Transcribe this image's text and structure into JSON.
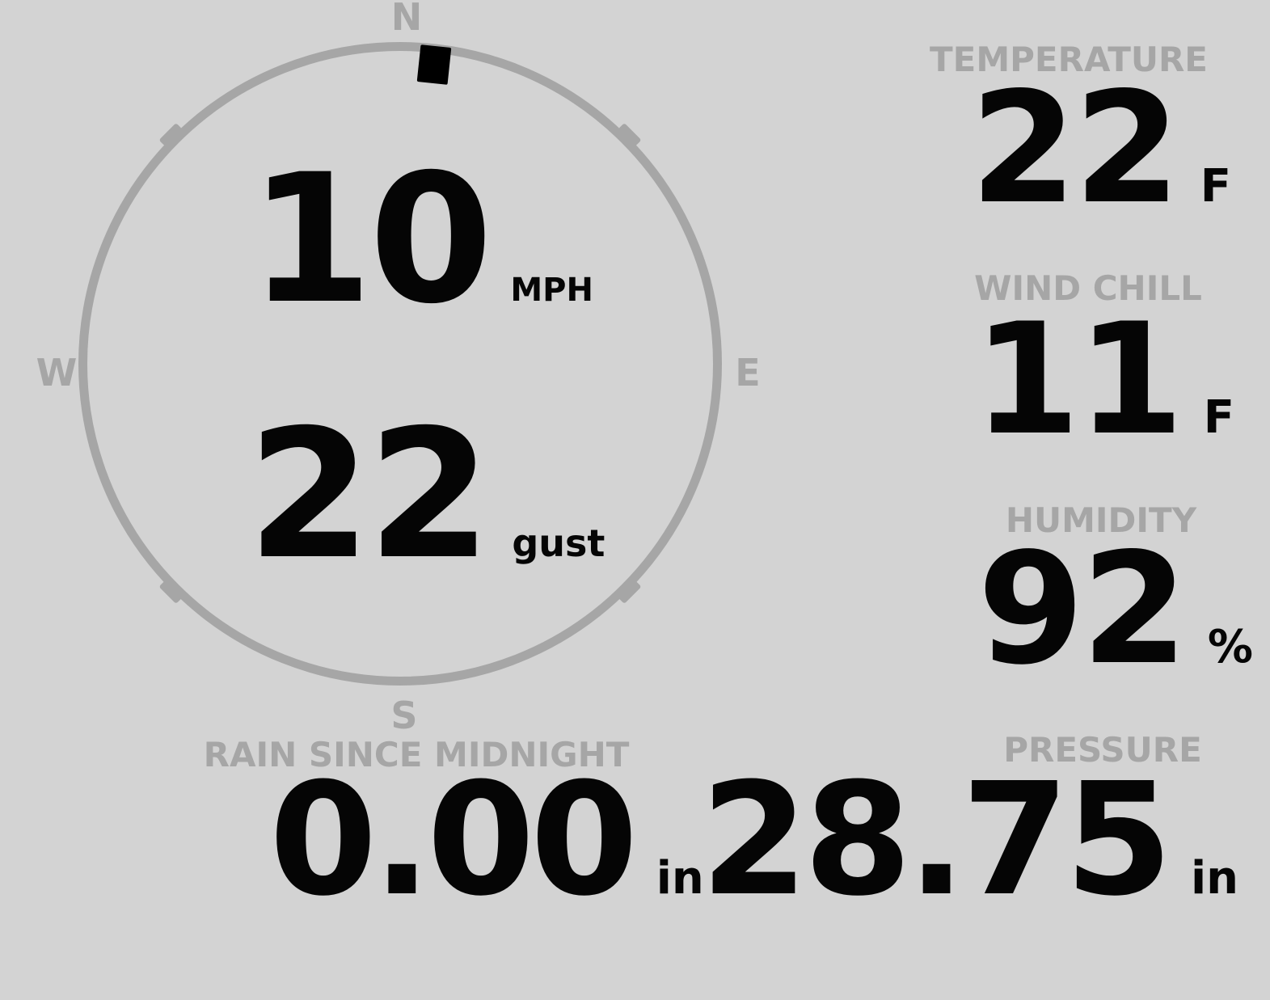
{
  "theme": {
    "background": "#d3d3d3",
    "muted": "#a6a6a6",
    "ink": "#050505"
  },
  "compass": {
    "cardinals": {
      "north": "N",
      "east": "E",
      "south": "S",
      "west": "W"
    },
    "wind": {
      "speed": "10",
      "speed_unit": "MPH",
      "gust": "22",
      "gust_unit": "gust",
      "direction_deg": 6
    }
  },
  "metrics": {
    "temperature": {
      "label": "TEMPERATURE",
      "value": "22",
      "unit": "F"
    },
    "wind_chill": {
      "label": "WIND CHILL",
      "value": "11",
      "unit": "F"
    },
    "humidity": {
      "label": "HUMIDITY",
      "value": "92",
      "unit": "%"
    },
    "rain_since_midnight": {
      "label": "RAIN SINCE MIDNIGHT",
      "value": "0.00",
      "unit": "in"
    },
    "pressure": {
      "label": "PRESSURE",
      "value": "28.75",
      "unit": "in"
    }
  }
}
